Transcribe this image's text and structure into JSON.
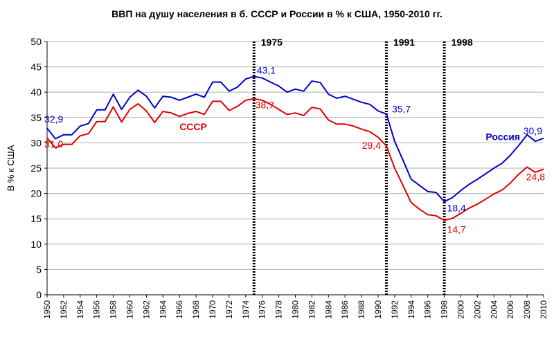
{
  "chart_data": {
    "type": "line",
    "title": "ВВП на душу населения в б. СССР и России в % к США, 1950-2010 гг.",
    "xlabel": "",
    "ylabel": "В % к США",
    "ylim": [
      0,
      50
    ],
    "xlim": [
      1950,
      2010
    ],
    "yticks": [
      0,
      5,
      10,
      15,
      20,
      25,
      30,
      35,
      40,
      45,
      50
    ],
    "xticks": [
      "1950",
      "1952",
      "1954",
      "1956",
      "1958",
      "1960",
      "1962",
      "1964",
      "1966",
      "1968",
      "1970",
      "1972",
      "1974",
      "1976",
      "1978",
      "1980",
      "1982",
      "1984",
      "1986",
      "1988",
      "1990",
      "1992",
      "1994",
      "1996",
      "1998",
      "2000",
      "2002",
      "2004",
      "2006",
      "2008",
      "2010"
    ],
    "grid": "horizontal",
    "colors": {
      "russia": "#0000cc",
      "ussr": "#dd0000",
      "vline": "#555555"
    },
    "vlines": [
      {
        "x": 1975,
        "label": "1975"
      },
      {
        "x": 1991,
        "label": "1991"
      },
      {
        "x": 1998,
        "label": "1998"
      }
    ],
    "series": [
      {
        "name": "Россия",
        "key": "russia",
        "x": [
          1950,
          1951,
          1952,
          1953,
          1954,
          1955,
          1956,
          1957,
          1958,
          1959,
          1960,
          1961,
          1962,
          1963,
          1964,
          1965,
          1966,
          1967,
          1968,
          1969,
          1970,
          1971,
          1972,
          1973,
          1974,
          1975,
          1976,
          1977,
          1978,
          1979,
          1980,
          1981,
          1982,
          1983,
          1984,
          1985,
          1986,
          1987,
          1988,
          1989,
          1990,
          1991,
          1992,
          1993,
          1994,
          1995,
          1996,
          1997,
          1998,
          1999,
          2000,
          2001,
          2002,
          2003,
          2004,
          2005,
          2006,
          2007,
          2008,
          2009,
          2010
        ],
        "values": [
          32.9,
          30.8,
          31.6,
          31.6,
          33.3,
          33.8,
          36.5,
          36.5,
          39.6,
          36.6,
          39.0,
          40.4,
          39.2,
          36.9,
          39.2,
          39.0,
          38.4,
          39.0,
          39.6,
          39.0,
          42.0,
          42.0,
          40.2,
          41.0,
          42.6,
          43.1,
          42.8,
          42.0,
          41.2,
          40.0,
          40.6,
          40.2,
          42.2,
          41.9,
          39.6,
          38.8,
          39.2,
          38.6,
          38.0,
          37.6,
          36.3,
          35.7,
          30.3,
          26.6,
          22.8,
          21.6,
          20.4,
          20.2,
          18.4,
          19.2,
          20.6,
          21.8,
          22.8,
          23.9,
          25.0,
          26.0,
          27.6,
          29.5,
          31.6,
          30.3,
          30.9
        ]
      },
      {
        "name": "СССР",
        "key": "ussr",
        "x": [
          1950,
          1951,
          1952,
          1953,
          1954,
          1955,
          1956,
          1957,
          1958,
          1959,
          1960,
          1961,
          1962,
          1963,
          1964,
          1965,
          1966,
          1967,
          1968,
          1969,
          1970,
          1971,
          1972,
          1973,
          1974,
          1975,
          1976,
          1977,
          1978,
          1979,
          1980,
          1981,
          1982,
          1983,
          1984,
          1985,
          1986,
          1987,
          1988,
          1989,
          1990,
          1991,
          1992,
          1993,
          1994,
          1995,
          1996,
          1997,
          1998,
          1999,
          2000,
          2001,
          2002,
          2003,
          2004,
          2005,
          2006,
          2007,
          2008,
          2009,
          2010
        ],
        "values": [
          31.0,
          29.0,
          29.7,
          29.7,
          31.4,
          31.8,
          34.2,
          34.2,
          37.1,
          34.1,
          36.6,
          37.7,
          36.3,
          34.0,
          36.2,
          35.9,
          35.2,
          35.8,
          36.2,
          35.6,
          38.2,
          38.2,
          36.4,
          37.2,
          38.4,
          38.7,
          38.4,
          37.6,
          36.6,
          35.6,
          35.9,
          35.4,
          37.0,
          36.7,
          34.5,
          33.7,
          33.7,
          33.3,
          32.7,
          32.2,
          31.1,
          29.4,
          25.0,
          21.6,
          18.2,
          16.9,
          15.8,
          15.6,
          14.7,
          15.1,
          16.1,
          17.1,
          17.9,
          18.9,
          19.9,
          20.7,
          22.1,
          23.8,
          25.2,
          24.2,
          24.8
        ]
      }
    ],
    "series_labels": [
      {
        "text": "Россия",
        "key": "russia"
      },
      {
        "text": "СССР",
        "key": "ussr"
      }
    ],
    "annotations": [
      {
        "text": "32,9",
        "x": 1950,
        "y": 32.9,
        "key": "russia"
      },
      {
        "text": "31,0",
        "x": 1950,
        "y": 31.0,
        "key": "ussr"
      },
      {
        "text": "43,1",
        "x": 1975,
        "y": 43.1,
        "key": "russia"
      },
      {
        "text": "38,7",
        "x": 1975,
        "y": 38.7,
        "key": "ussr"
      },
      {
        "text": "35,7",
        "x": 1991,
        "y": 35.7,
        "key": "russia"
      },
      {
        "text": "29,4",
        "x": 1991,
        "y": 29.4,
        "key": "ussr"
      },
      {
        "text": "18,4",
        "x": 1998,
        "y": 18.4,
        "key": "russia"
      },
      {
        "text": "14,7",
        "x": 1998,
        "y": 14.7,
        "key": "ussr"
      },
      {
        "text": "30,9",
        "x": 2010,
        "y": 30.9,
        "key": "russia"
      },
      {
        "text": "24,8",
        "x": 2010,
        "y": 24.8,
        "key": "ussr"
      }
    ]
  }
}
